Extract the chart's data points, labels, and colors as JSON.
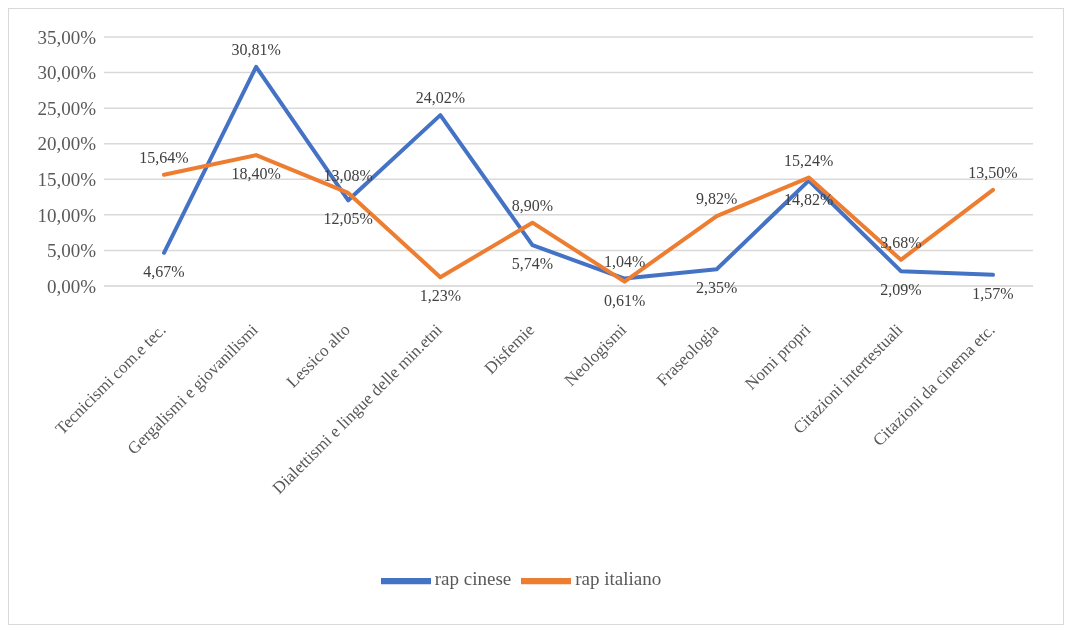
{
  "chart_data": {
    "type": "line",
    "categories": [
      "Tecnicismi com.e tec.",
      "Gergalismi e giovanilismi",
      "Lessico alto",
      "Dialettismi e lingue delle min.etni",
      "Disfemie",
      "Neologismi",
      "Fraseologia",
      "Nomi propri",
      "Citazioni intertestuali",
      "Citazioni da cinema etc."
    ],
    "series": [
      {
        "name": "rap cinese",
        "color": "#4472c4",
        "values": [
          4.67,
          30.81,
          12.05,
          24.02,
          5.74,
          1.04,
          2.35,
          14.82,
          2.09,
          1.57
        ],
        "value_labels": [
          "4,67%",
          "30,81%",
          "12,05%",
          "24,02%",
          "5,74%",
          "1,04%",
          "2,35%",
          "14,82%",
          "2,09%",
          "1,57%"
        ]
      },
      {
        "name": "rap italiano",
        "color": "#ed7d31",
        "values": [
          15.64,
          18.4,
          13.08,
          1.23,
          8.9,
          0.61,
          9.82,
          15.24,
          3.68,
          13.5
        ],
        "value_labels": [
          "15,64%",
          "18,40%",
          "13,08%",
          "1,23%",
          "8,90%",
          "0,61%",
          "9,82%",
          "15,24%",
          "3,68%",
          "13,50%"
        ]
      }
    ],
    "ylim": [
      0,
      35
    ],
    "yticks": [
      {
        "value": 0,
        "label": "0,00%"
      },
      {
        "value": 5,
        "label": "5,00%"
      },
      {
        "value": 10,
        "label": "10,00%"
      },
      {
        "value": 15,
        "label": "15,00%"
      },
      {
        "value": 20,
        "label": "20,00%"
      },
      {
        "value": 25,
        "label": "25,00%"
      },
      {
        "value": 30,
        "label": "30,00%"
      },
      {
        "value": 35,
        "label": "35,00%"
      }
    ],
    "grid": "y",
    "legend": "bottom",
    "marker": "none",
    "line_style": "solid"
  }
}
